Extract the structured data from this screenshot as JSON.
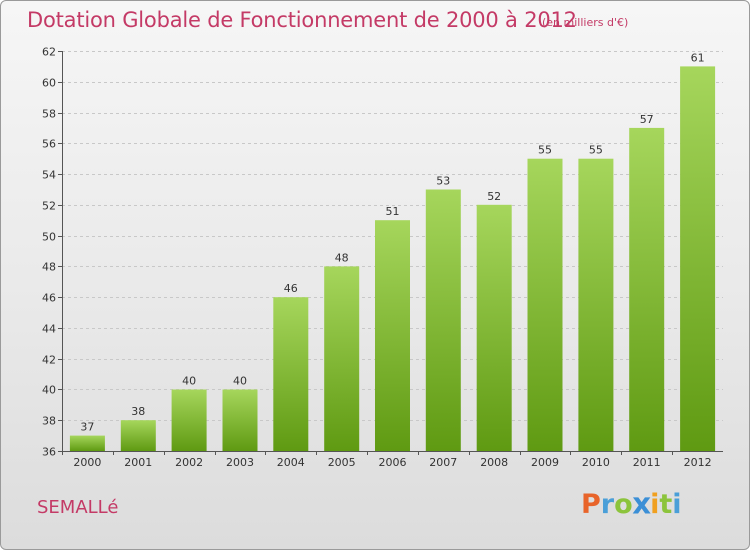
{
  "header": {
    "title": "Dotation Globale de Fonctionnement de 2000 à 2012",
    "subtitle": "(en milliers d'€)"
  },
  "footer": {
    "commune": "SEMALLé",
    "logo_letters": [
      "P",
      "r",
      "o",
      "x",
      "i",
      "t",
      "i"
    ],
    "logo_colors": [
      "#e8642a",
      "#4a9fd8",
      "#8cc43c",
      "#3b8fd6",
      "#f0a020",
      "#8cc43c",
      "#4a9fd8"
    ]
  },
  "colors": {
    "title": "#c43a66",
    "bar_top": "#a6d65c",
    "bar_bottom": "#5f9a12",
    "grid": "#c8c8c8",
    "axis": "#555555"
  },
  "chart_data": {
    "type": "bar",
    "title": "Dotation Globale de Fonctionnement de 2000 à 2012",
    "subtitle": "(en milliers d'€)",
    "xlabel": "",
    "ylabel": "",
    "categories": [
      "2000",
      "2001",
      "2002",
      "2003",
      "2004",
      "2005",
      "2006",
      "2007",
      "2008",
      "2009",
      "2010",
      "2011",
      "2012"
    ],
    "values": [
      37,
      38,
      40,
      40,
      46,
      48,
      51,
      53,
      52,
      55,
      55,
      57,
      61
    ],
    "ylim": [
      36,
      62
    ],
    "yticks": [
      36,
      38,
      40,
      42,
      44,
      46,
      48,
      50,
      52,
      54,
      56,
      58,
      60,
      62
    ],
    "grid": true,
    "legend": "none"
  }
}
